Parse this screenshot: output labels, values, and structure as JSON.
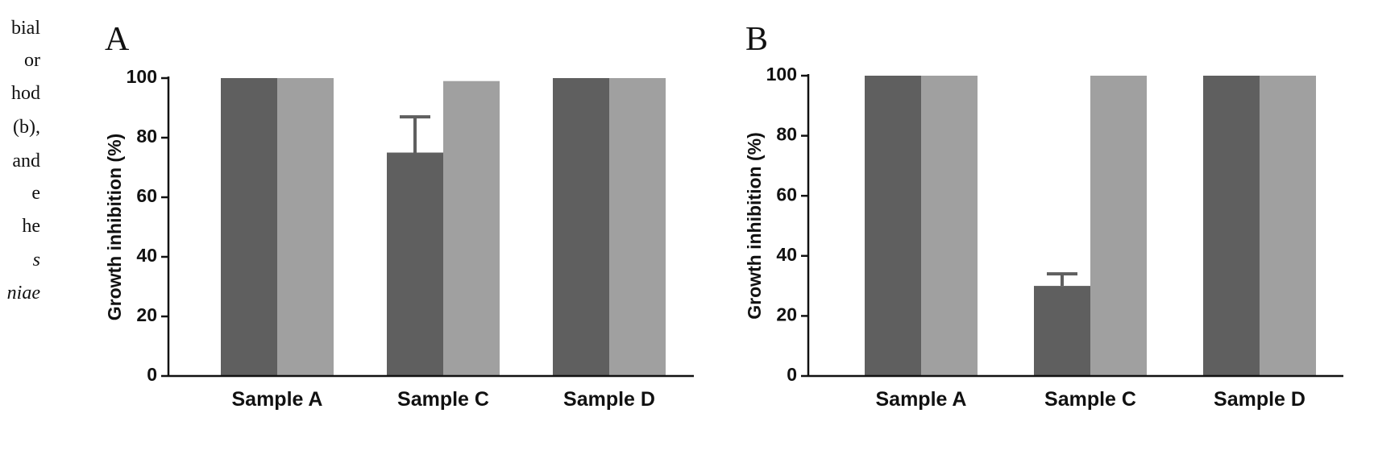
{
  "caption_fragments": [
    "bial",
    "or",
    "hod",
    "(b),",
    "and",
    "e",
    "he",
    "s",
    "niae"
  ],
  "chart_data": [
    {
      "type": "bar",
      "panel_label": "A",
      "ylabel": "Growth inhibition (%)",
      "categories": [
        "Sample A",
        "Sample C",
        "Sample D"
      ],
      "series": [
        {
          "color": "#5f5f5f",
          "values": [
            100,
            75,
            100
          ],
          "errors": [
            null,
            12,
            null
          ]
        },
        {
          "color": "#a0a0a0",
          "values": [
            100,
            99,
            100
          ]
        }
      ],
      "ylim": [
        0,
        100
      ],
      "yticks": [
        0,
        20,
        40,
        60,
        80,
        100
      ]
    },
    {
      "type": "bar",
      "panel_label": "B",
      "ylabel": "Growth inhibition (%)",
      "categories": [
        "Sample A",
        "Sample C",
        "Sample D"
      ],
      "series": [
        {
          "color": "#5f5f5f",
          "values": [
            100,
            30,
            100
          ],
          "errors": [
            null,
            4,
            null
          ]
        },
        {
          "color": "#a0a0a0",
          "values": [
            100,
            100,
            100
          ]
        }
      ],
      "ylim": [
        0,
        100
      ],
      "yticks": [
        0,
        20,
        40,
        60,
        80,
        100
      ]
    }
  ]
}
